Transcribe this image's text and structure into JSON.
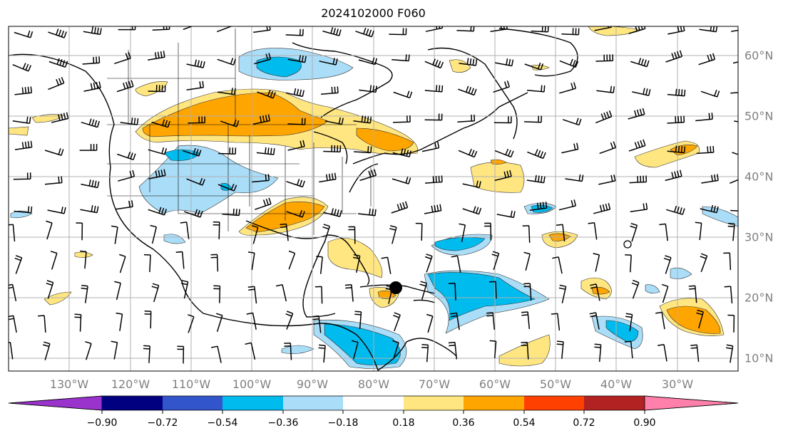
{
  "title": "2024102000 F060",
  "lon_labels": [
    "130°W",
    "120°W",
    "110°W",
    "100°W",
    "90°W",
    "80°W",
    "70°W",
    "60°W",
    "50°W",
    "40°W",
    "30°W"
  ],
  "lat_labels": [
    "60°N",
    "50°N",
    "40°N",
    "30°N",
    "20°N",
    "10°N"
  ],
  "colorbar": {
    "ticks": [
      "−0.90",
      "−0.72",
      "−0.54",
      "−0.36",
      "−0.18",
      "0.18",
      "0.36",
      "0.54",
      "0.72",
      "0.90"
    ],
    "colors": [
      "#9933cc",
      "#000080",
      "#3355cc",
      "#00bbee",
      "#aaddf8",
      "#ffffff",
      "#ffe680",
      "#ffa500",
      "#ff4000",
      "#b22222",
      "#ff80aa"
    ]
  },
  "marker": "storm-position-dot"
}
